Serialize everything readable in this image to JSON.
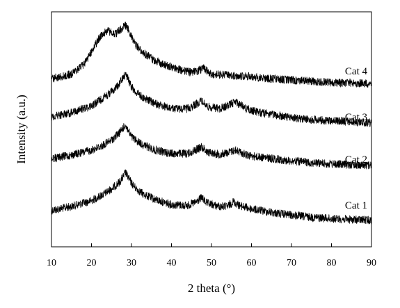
{
  "chart_data": {
    "type": "line",
    "title": "",
    "xlabel": "2 theta (°)",
    "ylabel": "Intensity (a.u.)",
    "xlim": [
      10,
      90
    ],
    "xticks": [
      10,
      20,
      30,
      40,
      50,
      60,
      70,
      80,
      90
    ],
    "y_tick_labels": false,
    "grid": false,
    "legend": "none",
    "line_color": "#000000",
    "series": [
      {
        "name": "Cat 1",
        "x": [
          10,
          15,
          20,
          23,
          25,
          27,
          28,
          28.5,
          29,
          30,
          31,
          33,
          36,
          40,
          44,
          46,
          47.5,
          49,
          52,
          54,
          55.5,
          57,
          60,
          65,
          70,
          75,
          80,
          85,
          90
        ],
        "y": [
          0.22,
          0.3,
          0.42,
          0.55,
          0.66,
          0.8,
          0.92,
          1.0,
          0.92,
          0.78,
          0.68,
          0.55,
          0.44,
          0.34,
          0.32,
          0.38,
          0.48,
          0.36,
          0.3,
          0.3,
          0.4,
          0.32,
          0.25,
          0.18,
          0.12,
          0.08,
          0.05,
          0.03,
          0.02
        ]
      },
      {
        "name": "Cat 2",
        "x": [
          10,
          15,
          20,
          23,
          25,
          27,
          28.5,
          29,
          30,
          31,
          33,
          36,
          40,
          44,
          46,
          47.5,
          49,
          52,
          54,
          56,
          58,
          60,
          65,
          70,
          75,
          80,
          85,
          90
        ],
        "y": [
          0.2,
          0.28,
          0.4,
          0.52,
          0.64,
          0.82,
          1.0,
          0.9,
          0.72,
          0.64,
          0.52,
          0.4,
          0.32,
          0.32,
          0.4,
          0.48,
          0.36,
          0.3,
          0.34,
          0.4,
          0.32,
          0.26,
          0.2,
          0.14,
          0.1,
          0.07,
          0.05,
          0.03
        ]
      },
      {
        "name": "Cat 3",
        "x": [
          10,
          15,
          20,
          23,
          25,
          27,
          28.5,
          29,
          30,
          31,
          33,
          36,
          40,
          44,
          46,
          47.5,
          49,
          52,
          54,
          56,
          58,
          60,
          65,
          70,
          75,
          80,
          85,
          90
        ],
        "y": [
          0.14,
          0.22,
          0.36,
          0.52,
          0.64,
          0.8,
          1.0,
          0.92,
          0.74,
          0.64,
          0.52,
          0.4,
          0.3,
          0.3,
          0.38,
          0.46,
          0.34,
          0.3,
          0.36,
          0.44,
          0.34,
          0.26,
          0.18,
          0.12,
          0.08,
          0.06,
          0.04,
          0.02
        ]
      },
      {
        "name": "Cat 4",
        "x": [
          10,
          15,
          18,
          20,
          22,
          24,
          25,
          26,
          27,
          28,
          28.5,
          29,
          30,
          31,
          33,
          36,
          40,
          44,
          46,
          48,
          50,
          55,
          60,
          65,
          70,
          75,
          80,
          85,
          90
        ],
        "y": [
          0.1,
          0.18,
          0.34,
          0.56,
          0.8,
          0.92,
          0.88,
          0.86,
          0.92,
          0.98,
          1.0,
          0.96,
          0.82,
          0.68,
          0.54,
          0.4,
          0.3,
          0.22,
          0.22,
          0.28,
          0.18,
          0.16,
          0.14,
          0.1,
          0.08,
          0.06,
          0.04,
          0.03,
          0.02
        ]
      }
    ]
  }
}
